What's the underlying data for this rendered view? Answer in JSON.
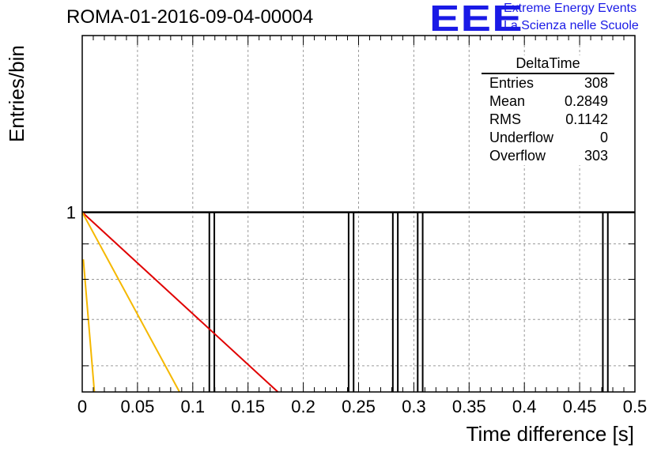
{
  "header": {
    "title": "ROMA-01-2016-09-04-00004",
    "logo_text": "EEE",
    "brand_line1": "Extreme Energy Events",
    "brand_line2": "La Scienza nelle Scuole",
    "brand_color": "#1a1ae6"
  },
  "stats": {
    "title": "DeltaTime",
    "rows": [
      {
        "label": "Entries",
        "value": "308"
      },
      {
        "label": "Mean",
        "value": "0.2849"
      },
      {
        "label": "RMS",
        "value": "0.1142"
      },
      {
        "label": "Underflow",
        "value": "0"
      },
      {
        "label": "Overflow",
        "value": "303"
      }
    ]
  },
  "chart_data": {
    "type": "histogram",
    "xlabel": "Time difference [s]",
    "ylabel": "Entries/bin",
    "xlim": [
      0,
      0.5
    ],
    "y_scale": "log",
    "ylim": [
      0.55,
      1.8
    ],
    "x_ticks": [
      "0",
      "0.05",
      "0.1",
      "0.15",
      "0.2",
      "0.25",
      "0.3",
      "0.35",
      "0.4",
      "0.45",
      "0.5"
    ],
    "y_ticks": [
      "1"
    ],
    "grid": true,
    "bins": [
      {
        "x0": 0.115,
        "x1": 0.1195,
        "count": 1
      },
      {
        "x0": 0.241,
        "x1": 0.2455,
        "count": 1
      },
      {
        "x0": 0.281,
        "x1": 0.2855,
        "count": 1
      },
      {
        "x0": 0.3035,
        "x1": 0.308,
        "count": 1
      },
      {
        "x0": 0.471,
        "x1": 0.4755,
        "count": 1
      }
    ],
    "fit_lines": [
      {
        "color": "#e00000",
        "points": [
          [
            0,
            1
          ],
          [
            0.177,
            0.55
          ]
        ]
      },
      {
        "color": "#f5b800",
        "points": [
          [
            0,
            1
          ],
          [
            0.088,
            0.55
          ]
        ]
      },
      {
        "color": "#f5b800",
        "points": [
          [
            0.001,
            0.855
          ],
          [
            0.011,
            0.55
          ]
        ]
      }
    ],
    "colors": {
      "axis": "#000000",
      "grid": "#9a9a9a"
    }
  }
}
